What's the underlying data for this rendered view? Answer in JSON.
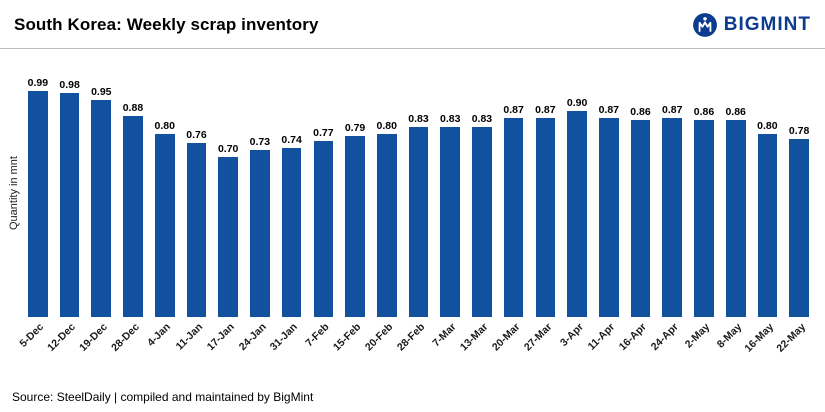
{
  "header": {
    "title": "South Korea: Weekly scrap inventory",
    "brand": "BIGMINT"
  },
  "footer": {
    "source": "Source: SteelDaily | compiled and maintained by BigMint"
  },
  "chart_data": {
    "type": "bar",
    "title": "South Korea: Weekly scrap inventory",
    "xlabel": "",
    "ylabel": "Quantity in mnt",
    "categories": [
      "5-Dec",
      "12-Dec",
      "19-Dec",
      "28-Dec",
      "4-Jan",
      "11-Jan",
      "17-Jan",
      "24-Jan",
      "31-Jan",
      "7-Feb",
      "15-Feb",
      "20-Feb",
      "28-Feb",
      "7-Mar",
      "13-Mar",
      "20-Mar",
      "27-Mar",
      "3-Apr",
      "11-Apr",
      "16-Apr",
      "24-Apr",
      "2-May",
      "8-May",
      "16-May",
      "22-May"
    ],
    "values": [
      0.99,
      0.98,
      0.95,
      0.88,
      0.8,
      0.76,
      0.7,
      0.73,
      0.74,
      0.77,
      0.79,
      0.8,
      0.83,
      0.83,
      0.83,
      0.87,
      0.87,
      0.9,
      0.87,
      0.86,
      0.87,
      0.86,
      0.86,
      0.8,
      0.78
    ],
    "ylim": [
      0,
      1.05
    ],
    "grid": false,
    "legend": "none",
    "value_labels": true,
    "value_label_decimals": 2,
    "bar_color": "#11519f",
    "brand_color": "#0d3b8f"
  }
}
